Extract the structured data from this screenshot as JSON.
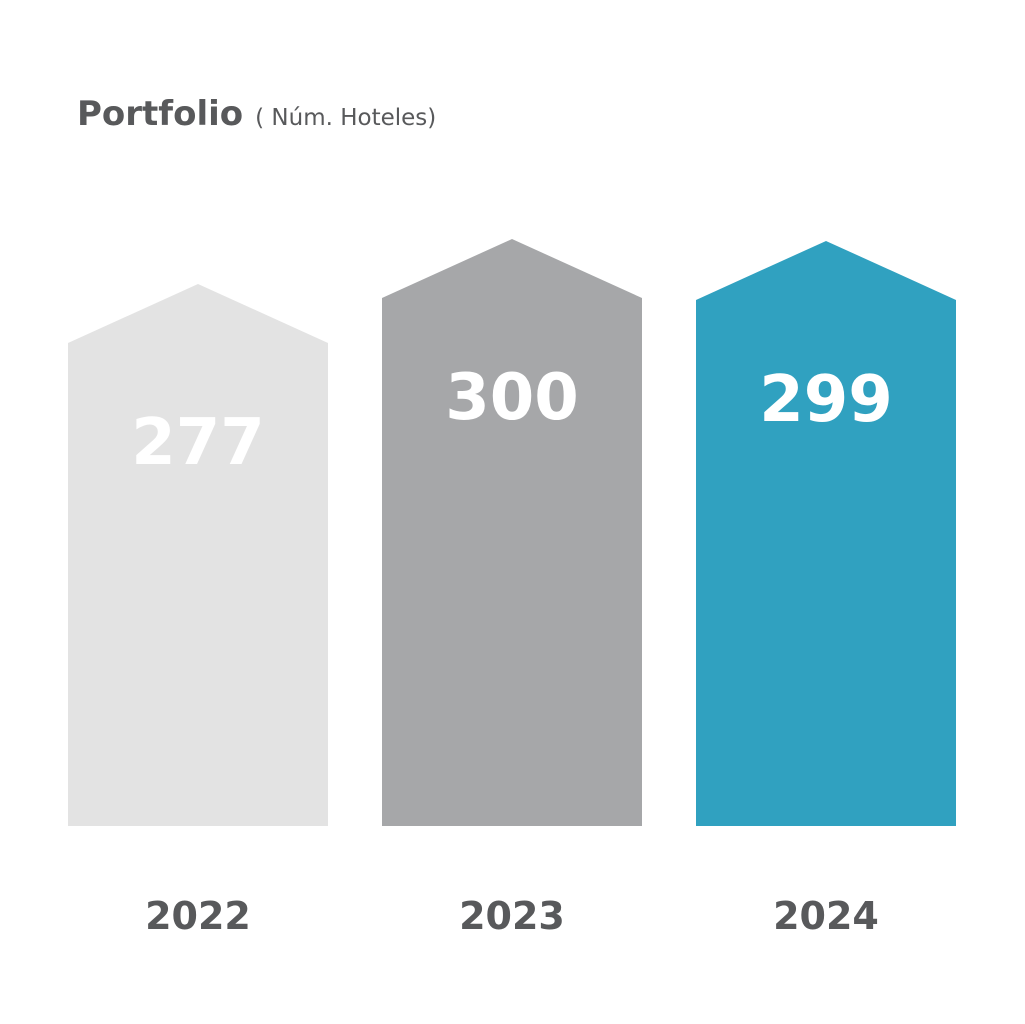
{
  "chart_data": {
    "type": "bar",
    "title": "Portfolio",
    "subtitle": "( Núm. Hoteles)",
    "categories": [
      "2022",
      "2023",
      "2024"
    ],
    "values": [
      277,
      300,
      299
    ],
    "bar_colors": [
      "#e3e3e3",
      "#a6a7a9",
      "#30a1c0"
    ],
    "label_color": "#ffffff",
    "text_color": "#58595b",
    "bar_shape": "house",
    "legend": "none",
    "grid": false
  }
}
